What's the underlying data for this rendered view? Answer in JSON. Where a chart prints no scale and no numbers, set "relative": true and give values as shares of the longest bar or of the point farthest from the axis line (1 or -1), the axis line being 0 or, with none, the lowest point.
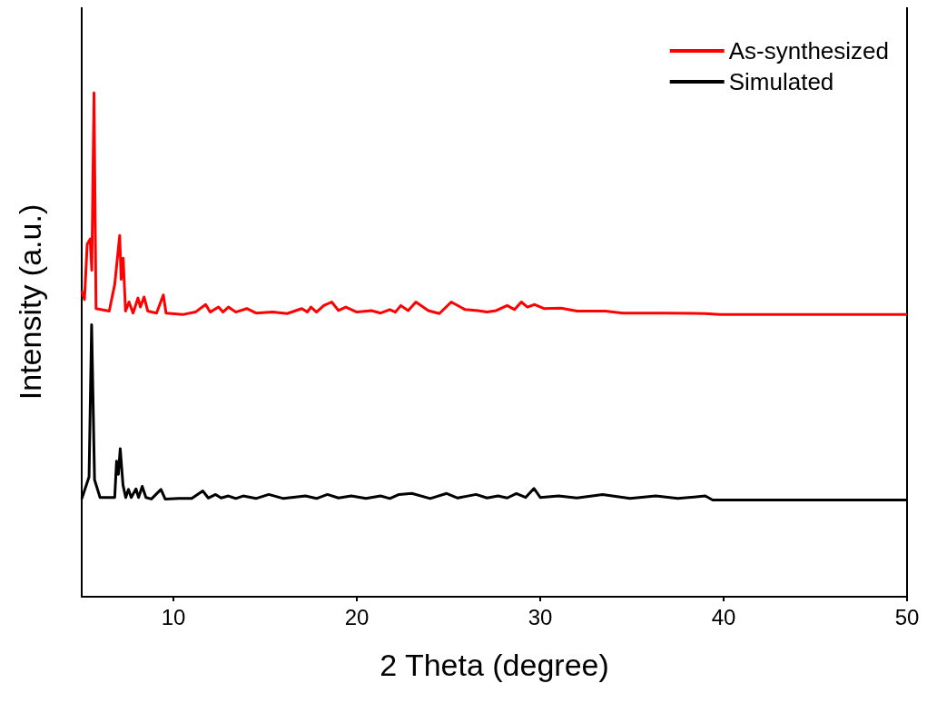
{
  "chart_data": {
    "type": "line",
    "xlabel": "2 Theta (degree)",
    "ylabel": "Intensity (a.u.)",
    "relative": true,
    "xlim": [
      5,
      50
    ],
    "xticks": [
      10,
      20,
      30,
      40,
      50
    ],
    "legend": "top right",
    "grid": false,
    "marker": "none",
    "line_style": "solid",
    "series": [
      {
        "name": "As-synthesized",
        "color": "#ff0000",
        "x": [
          5,
          5.15,
          5.3,
          5.46,
          5.55,
          5.67,
          5.78,
          6.5,
          6.8,
          7.07,
          7.15,
          7.26,
          7.39,
          7.58,
          7.8,
          8.07,
          8.2,
          8.4,
          8.6,
          9.08,
          9.45,
          9.6,
          10.5,
          11.2,
          11.76,
          12.0,
          12.46,
          12.7,
          13.0,
          13.4,
          14.0,
          14.5,
          15.4,
          16.2,
          17.0,
          17.3,
          17.5,
          17.8,
          18.2,
          18.63,
          19.0,
          19.4,
          20.0,
          20.8,
          21.3,
          21.8,
          22.1,
          22.4,
          22.8,
          23.22,
          23.9,
          24.5,
          25.15,
          25.9,
          26.6,
          27.1,
          27.6,
          28.2,
          28.6,
          28.97,
          29.3,
          29.7,
          30.2,
          31.14,
          32.0,
          33.55,
          34.5,
          35.5,
          36.8,
          39,
          39.8,
          45,
          50
        ],
        "values": [
          0.607,
          0.59,
          0.7,
          0.71,
          0.648,
          1,
          0.572,
          0.567,
          0.62,
          0.717,
          0.63,
          0.672,
          0.567,
          0.585,
          0.563,
          0.593,
          0.575,
          0.595,
          0.567,
          0.563,
          0.599,
          0.563,
          0.56,
          0.565,
          0.58,
          0.565,
          0.575,
          0.565,
          0.575,
          0.565,
          0.572,
          0.563,
          0.565,
          0.562,
          0.572,
          0.565,
          0.575,
          0.565,
          0.578,
          0.585,
          0.568,
          0.575,
          0.565,
          0.568,
          0.563,
          0.57,
          0.565,
          0.578,
          0.568,
          0.585,
          0.568,
          0.562,
          0.585,
          0.57,
          0.568,
          0.565,
          0.568,
          0.578,
          0.57,
          0.585,
          0.575,
          0.58,
          0.572,
          0.573,
          0.567,
          0.567,
          0.563,
          0.563,
          0.563,
          0.562,
          0.56,
          0.56,
          0.56
        ]
      },
      {
        "name": "Simulated",
        "color": "#000000",
        "x": [
          5,
          5.4,
          5.54,
          5.7,
          6.0,
          6.8,
          6.9,
          7.0,
          7.1,
          7.25,
          7.4,
          7.55,
          7.7,
          7.96,
          8.1,
          8.3,
          8.5,
          8.8,
          9.32,
          9.55,
          10.3,
          11.0,
          11.6,
          11.9,
          12.3,
          12.6,
          13.0,
          13.4,
          13.8,
          14.5,
          15.2,
          16.0,
          17.2,
          17.8,
          18.4,
          19.0,
          19.7,
          20.5,
          21.3,
          21.8,
          22.3,
          23.0,
          24.0,
          24.9,
          25.5,
          26.5,
          27.1,
          27.7,
          28.2,
          28.7,
          29.2,
          29.66,
          30.0,
          31.0,
          32.0,
          33.4,
          34.9,
          36.3,
          37.5,
          39.0,
          39.4,
          45,
          50
        ],
        "values": [
          0.194,
          0.238,
          0.54,
          0.232,
          0.197,
          0.197,
          0.269,
          0.243,
          0.294,
          0.222,
          0.197,
          0.213,
          0.197,
          0.214,
          0.197,
          0.219,
          0.197,
          0.194,
          0.213,
          0.194,
          0.195,
          0.195,
          0.21,
          0.196,
          0.203,
          0.196,
          0.2,
          0.195,
          0.2,
          0.195,
          0.203,
          0.195,
          0.2,
          0.195,
          0.203,
          0.196,
          0.2,
          0.195,
          0.2,
          0.195,
          0.203,
          0.205,
          0.195,
          0.205,
          0.196,
          0.203,
          0.196,
          0.2,
          0.196,
          0.205,
          0.197,
          0.215,
          0.197,
          0.2,
          0.196,
          0.203,
          0.195,
          0.2,
          0.195,
          0.2,
          0.192,
          0.192,
          0.192
        ]
      }
    ]
  }
}
